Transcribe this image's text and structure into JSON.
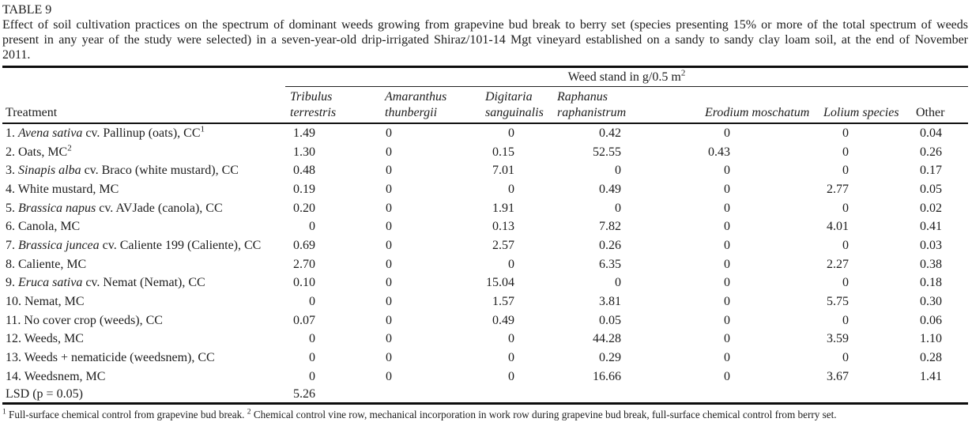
{
  "caption": {
    "title": "TABLE 9",
    "line1": "Effect of soil cultivation practices on the spectrum of dominant weeds growing from grapevine bud break to berry set (species presenting 15% or more of the total spectrum of weeds",
    "line2": "present in any year of the study were selected) in a seven-year-old drip-irrigated Shiraz/101-14 Mgt vineyard established on a sandy to sandy clay loam soil, at the end of November",
    "line3": "2011."
  },
  "table": {
    "spanner": {
      "text": "Weed stand in g/0.5 m",
      "sup": "2"
    },
    "treatment_header": "Treatment",
    "columns": [
      {
        "line1": "Tribulus",
        "line2": "terrestris",
        "italic": true
      },
      {
        "line1": "Amaranthus",
        "line2": "thunbergii",
        "italic": true
      },
      {
        "line1": "Digitaria",
        "line2": "sanguinalis",
        "italic": true
      },
      {
        "line1": "Raphanus",
        "line2": "raphanistrum",
        "italic": true
      },
      {
        "line1": "",
        "line2": "Erodium moschatum",
        "italic": true
      },
      {
        "line1": "",
        "line2": "Lolium species",
        "italic": true
      },
      {
        "line1": "",
        "line2": "Other",
        "italic": false
      }
    ],
    "rows": [
      {
        "treatment": {
          "prefix": "1. ",
          "italic": "Avena sativa",
          "suffix": " cv. Pallinup (oats), CC",
          "sup": "1"
        },
        "values": [
          "1.49",
          "0",
          "0",
          "0.42",
          "0",
          "0",
          "0.04"
        ]
      },
      {
        "treatment": {
          "prefix": "2. Oats, MC",
          "italic": "",
          "suffix": "",
          "sup": "2"
        },
        "values": [
          "1.30",
          "0",
          "0.15",
          "52.55",
          "0.43",
          "0",
          "0.26"
        ]
      },
      {
        "treatment": {
          "prefix": "3. ",
          "italic": "Sinapis alba",
          "suffix": " cv. Braco (white mustard), CC",
          "sup": ""
        },
        "values": [
          "0.48",
          "0",
          "7.01",
          "0",
          "0",
          "0",
          "0.17"
        ]
      },
      {
        "treatment": {
          "prefix": "4. White mustard, MC",
          "italic": "",
          "suffix": "",
          "sup": ""
        },
        "values": [
          "0.19",
          "0",
          "0",
          "0.49",
          "0",
          "2.77",
          "0.05"
        ]
      },
      {
        "treatment": {
          "prefix": "5. ",
          "italic": "Brassica napus",
          "suffix": " cv. AVJade (canola), CC",
          "sup": ""
        },
        "values": [
          "0.20",
          "0",
          "1.91",
          "0",
          "0",
          "0",
          "0.02"
        ]
      },
      {
        "treatment": {
          "prefix": "6. Canola, MC",
          "italic": "",
          "suffix": "",
          "sup": ""
        },
        "values": [
          "0",
          "0",
          "0.13",
          "7.82",
          "0",
          "4.01",
          "0.41"
        ]
      },
      {
        "treatment": {
          "prefix": "7. ",
          "italic": "Brassica juncea",
          "suffix": " cv. Caliente 199 (Caliente), CC",
          "sup": ""
        },
        "values": [
          "0.69",
          "0",
          "2.57",
          "0.26",
          "0",
          "0",
          "0.03"
        ]
      },
      {
        "treatment": {
          "prefix": "8. Caliente, MC",
          "italic": "",
          "suffix": "",
          "sup": ""
        },
        "values": [
          "2.70",
          "0",
          "0",
          "6.35",
          "0",
          "2.27",
          "0.38"
        ]
      },
      {
        "treatment": {
          "prefix": "9. ",
          "italic": "Eruca sativa",
          "suffix": " cv. Nemat (Nemat), CC",
          "sup": ""
        },
        "values": [
          "0.10",
          "0",
          "15.04",
          "0",
          "0",
          "0",
          "0.18"
        ]
      },
      {
        "treatment": {
          "prefix": "10. Nemat, MC",
          "italic": "",
          "suffix": "",
          "sup": ""
        },
        "values": [
          "0",
          "0",
          "1.57",
          "3.81",
          "0",
          "5.75",
          "0.30"
        ]
      },
      {
        "treatment": {
          "prefix": "11. No cover crop (weeds), CC",
          "italic": "",
          "suffix": "",
          "sup": ""
        },
        "values": [
          "0.07",
          "0",
          "0.49",
          "0.05",
          "0",
          "0",
          "0.06"
        ]
      },
      {
        "treatment": {
          "prefix": "12. Weeds, MC",
          "italic": "",
          "suffix": "",
          "sup": ""
        },
        "values": [
          "0",
          "0",
          "0",
          "44.28",
          "0",
          "3.59",
          "1.10"
        ]
      },
      {
        "treatment": {
          "prefix": "13. Weeds + nematicide (weedsnem), CC",
          "italic": "",
          "suffix": "",
          "sup": ""
        },
        "values": [
          "0",
          "0",
          "0",
          "0.29",
          "0",
          "0",
          "0.28"
        ]
      },
      {
        "treatment": {
          "prefix": "14. Weedsnem, MC",
          "italic": "",
          "suffix": "",
          "sup": ""
        },
        "values": [
          "0",
          "0",
          "0",
          "16.66",
          "0",
          "3.67",
          "1.41"
        ]
      },
      {
        "treatment": {
          "prefix": "LSD (p = 0.05)",
          "italic": "",
          "suffix": "",
          "sup": ""
        },
        "values": [
          "5.26",
          "",
          "",
          "",
          "",
          "",
          ""
        ],
        "lsd": true
      }
    ]
  },
  "footnote": {
    "sup1": "1",
    "text1": " Full-surface chemical control from grapevine bud break. ",
    "sup2": "2",
    "text2": " Chemical control vine row, mechanical incorporation in work row during grapevine bud break, full-surface chemical control from berry set."
  }
}
